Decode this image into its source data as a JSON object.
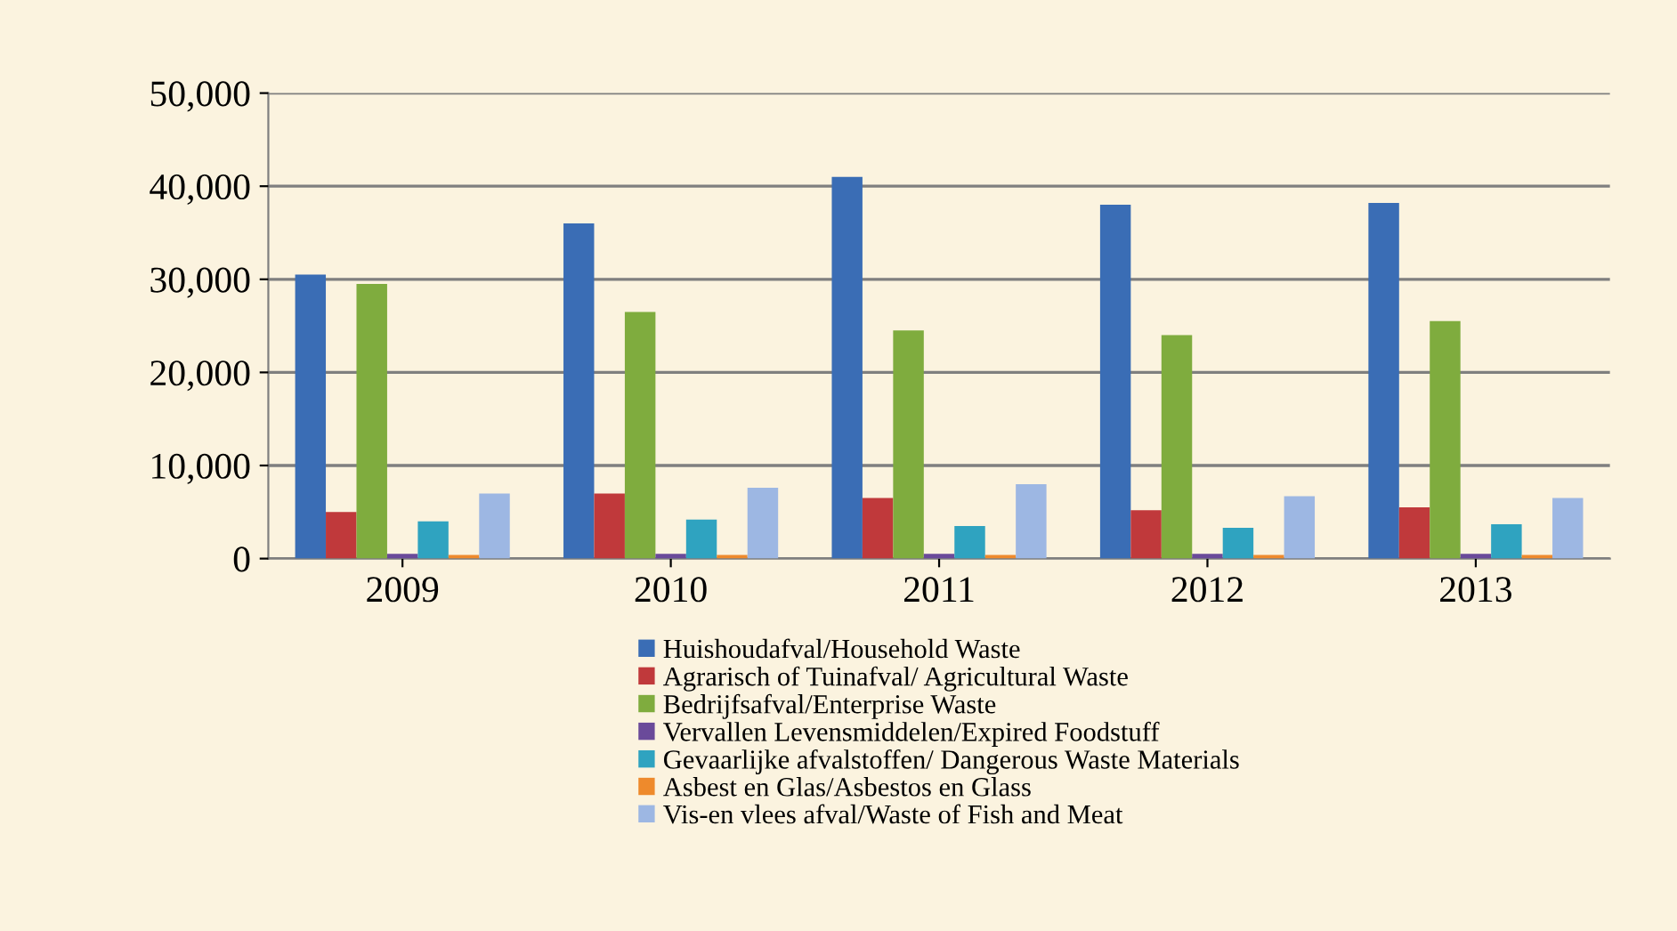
{
  "chart_data": {
    "type": "bar",
    "categories": [
      "2009",
      "2010",
      "2011",
      "2012",
      "2013"
    ],
    "series": [
      {
        "name": "Huishoudafval/Household Waste",
        "color": "#3a6db5",
        "values": [
          30500,
          36000,
          41000,
          38000,
          38200
        ]
      },
      {
        "name": "Agrarisch of Tuinafval/ Agricultural Waste",
        "color": "#c0393b",
        "values": [
          5000,
          7000,
          6500,
          5200,
          5500
        ]
      },
      {
        "name": "Bedrijfsafval/Enterprise Waste",
        "color": "#7fac3e",
        "values": [
          29500,
          26500,
          24500,
          24000,
          25500
        ]
      },
      {
        "name": "Vervallen Levensmiddelen/Expired Foodstuff",
        "color": "#6a4a9a",
        "values": [
          500,
          500,
          500,
          500,
          500
        ]
      },
      {
        "name": "Gevaarlijke afvalstoffen/ Dangerous Waste Materials",
        "color": "#2fa3c0",
        "values": [
          4000,
          4200,
          3500,
          3300,
          3700
        ]
      },
      {
        "name": "Asbest en Glas/Asbestos en Glass",
        "color": "#ee8a2c",
        "values": [
          400,
          400,
          400,
          400,
          400
        ]
      },
      {
        "name": "Vis-en vlees afval/Waste of Fish and Meat",
        "color": "#9db7e3",
        "values": [
          7000,
          7600,
          8000,
          6700,
          6500
        ]
      }
    ],
    "ylim": [
      0,
      50000
    ],
    "yticks": [
      {
        "value": 0,
        "label": "0"
      },
      {
        "value": 10000,
        "label": "10,000"
      },
      {
        "value": 20000,
        "label": "20,000"
      },
      {
        "value": 30000,
        "label": "30,000"
      },
      {
        "value": 40000,
        "label": "40,000"
      },
      {
        "value": 50000,
        "label": "50,000"
      }
    ],
    "grid": "y",
    "legend": "bottom"
  }
}
